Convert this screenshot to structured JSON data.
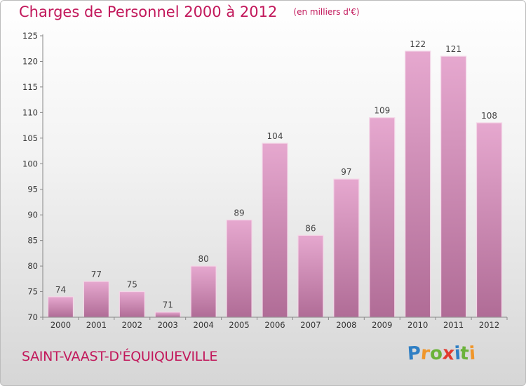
{
  "title": "Charges de Personnel 2000 à 2012",
  "subtitle": "(en milliers d'€)",
  "city": "SAINT-VAAST-D'ÉQUIQUEVILLE",
  "logo": {
    "letters": [
      "P",
      "r",
      "o",
      "x",
      "i",
      "t",
      "i"
    ],
    "colors": [
      "#2f7fc4",
      "#f0962a",
      "#6bb33a",
      "#e23a2e",
      "#2f7fc4",
      "#6bb33a",
      "#f0962a"
    ]
  },
  "colors": {
    "bar_top": "#e6a8cf",
    "bar_bottom": "#b06c96",
    "text_accent": "#c2185b"
  },
  "chart_data": {
    "type": "bar",
    "categories": [
      "2000",
      "2001",
      "2002",
      "2003",
      "2004",
      "2005",
      "2006",
      "2007",
      "2008",
      "2009",
      "2010",
      "2011",
      "2012"
    ],
    "values": [
      74,
      77,
      75,
      71,
      80,
      89,
      104,
      86,
      97,
      109,
      122,
      121,
      108
    ],
    "ylim": [
      70,
      125
    ],
    "yticks": [
      70,
      75,
      80,
      85,
      90,
      95,
      100,
      105,
      110,
      115,
      120,
      125
    ],
    "grid": false,
    "data_labels": true
  }
}
